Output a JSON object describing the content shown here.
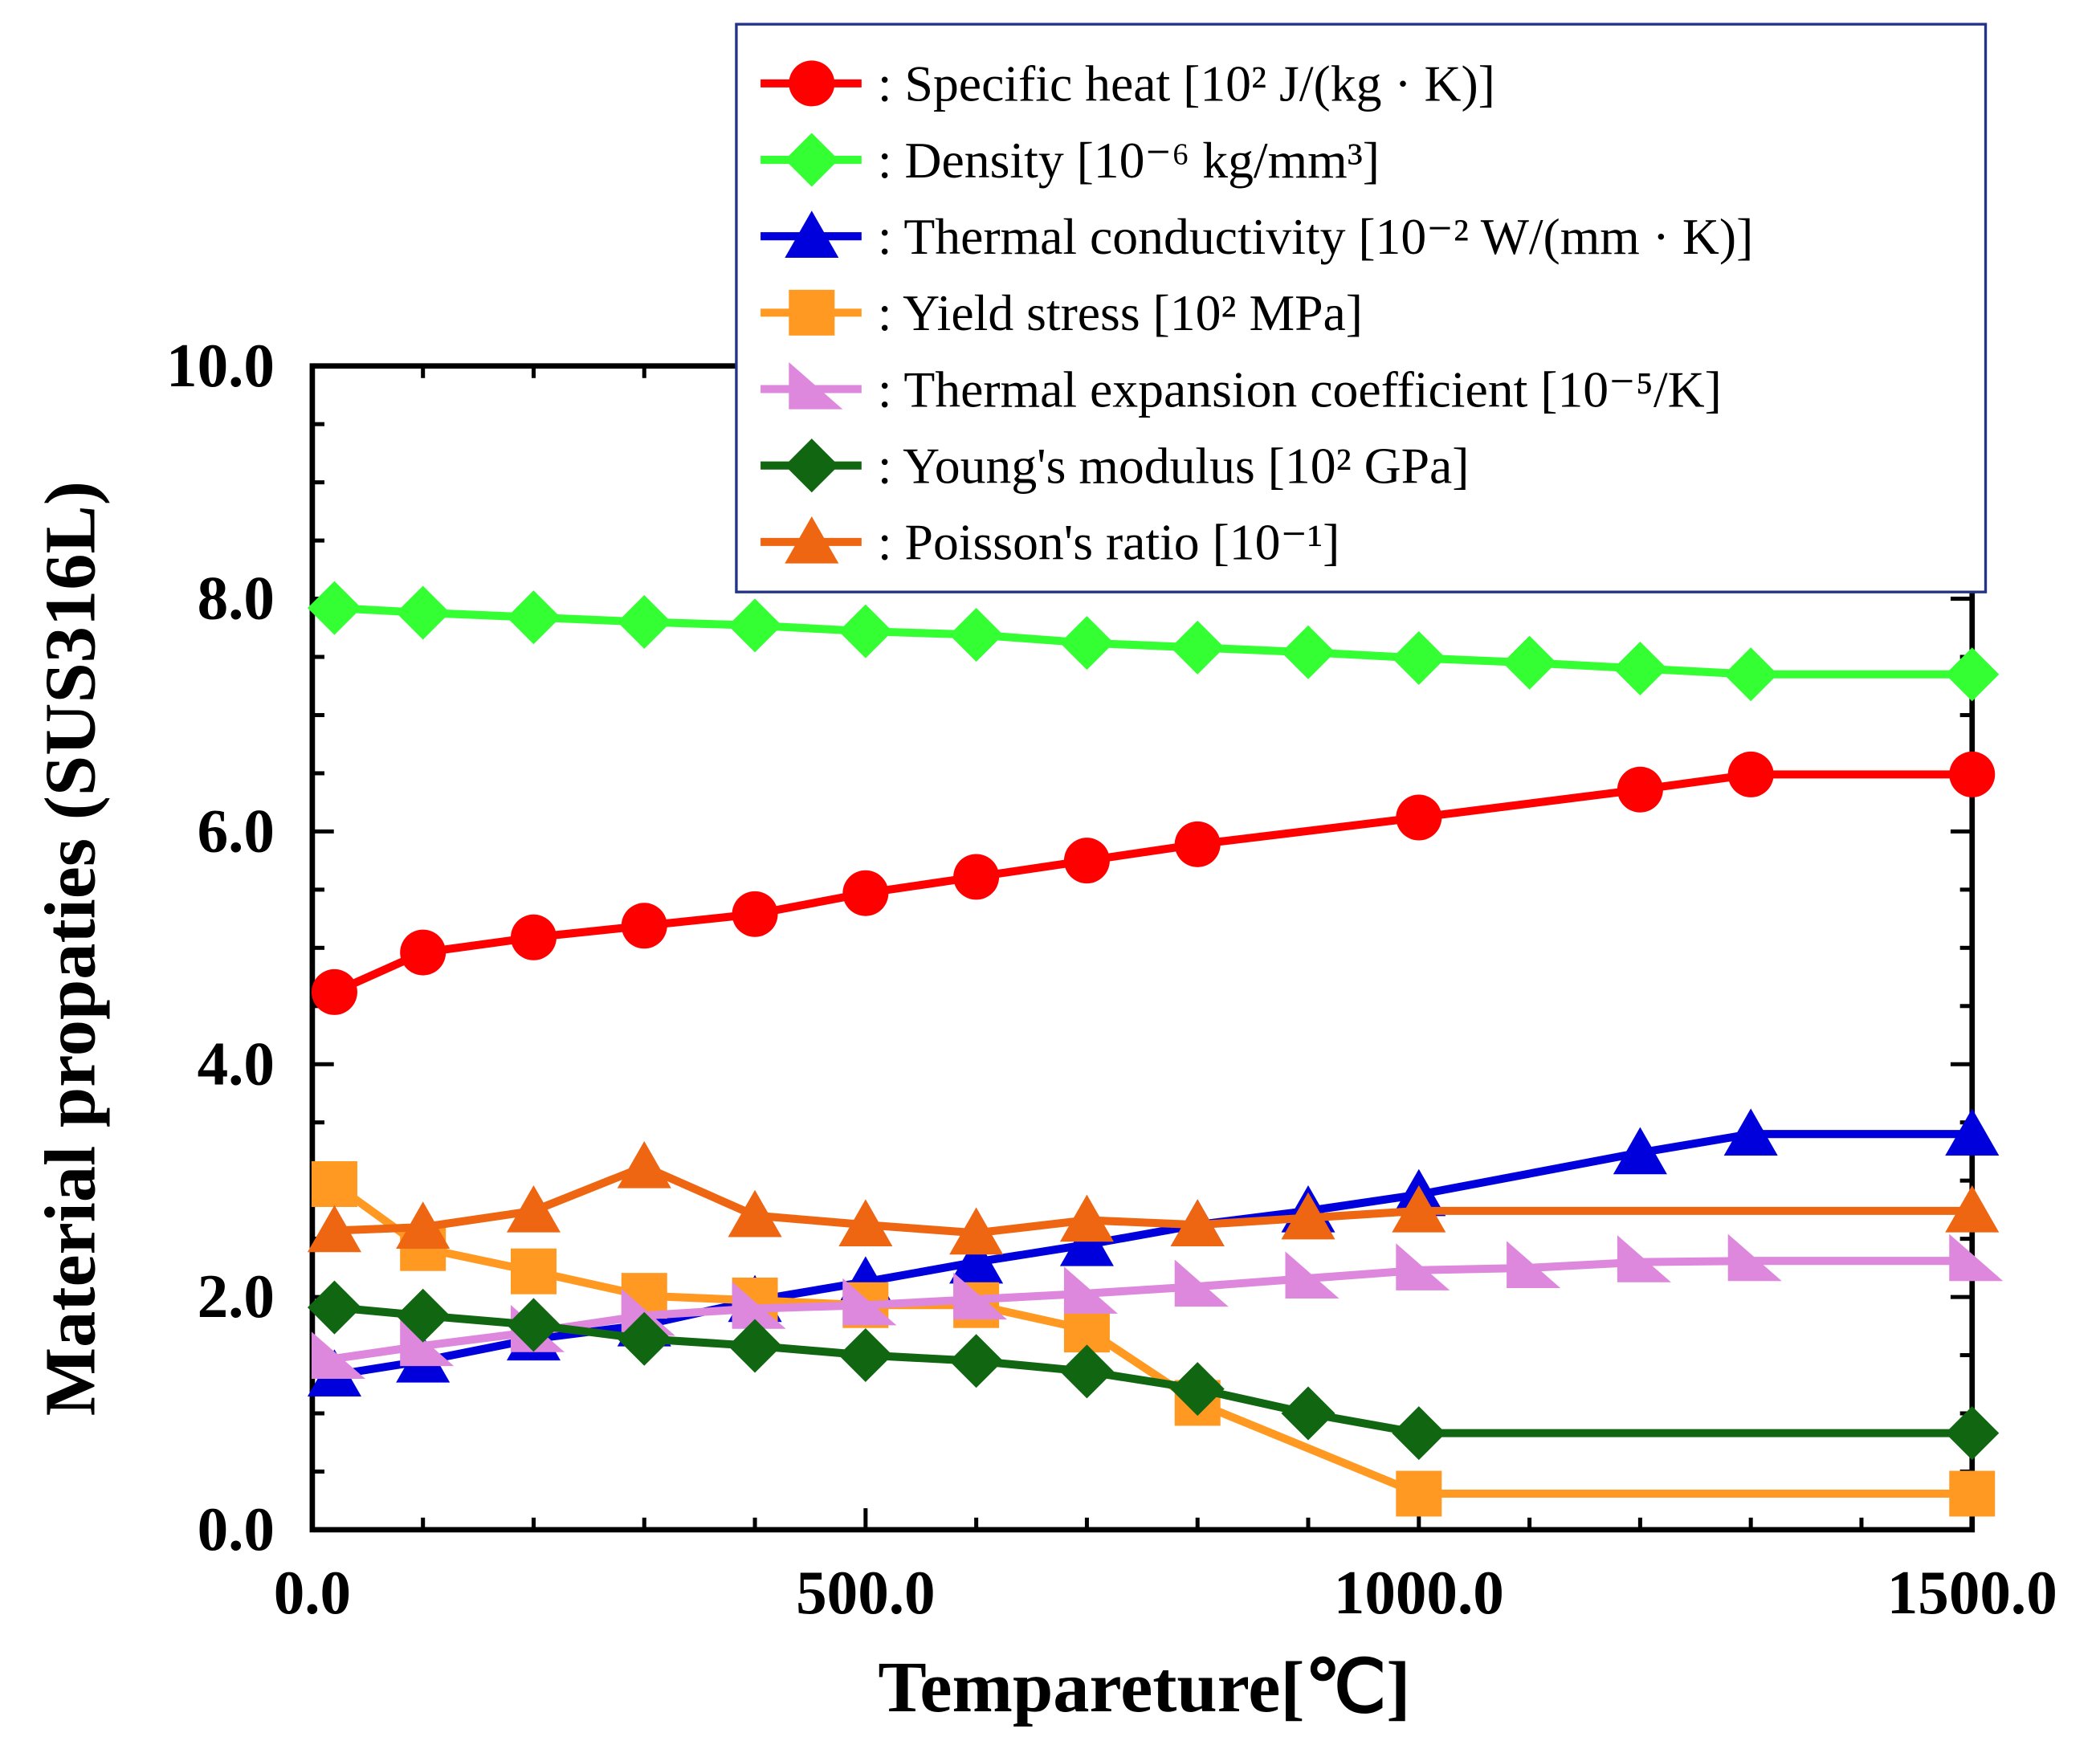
{
  "chart_data": {
    "type": "line",
    "title": "",
    "xlabel": "Tempareture[℃]",
    "ylabel": "Material propaties (SUS316L)",
    "xlim": [
      0,
      1500
    ],
    "ylim": [
      0,
      10
    ],
    "xticks": [
      "0.0",
      "500.0",
      "1000.0",
      "1500.0"
    ],
    "yticks": [
      "0.0",
      "2.0",
      "4.0",
      "6.0",
      "8.0",
      "10.0"
    ],
    "xtick_values": [
      0,
      500,
      1000,
      1500
    ],
    "ytick_values": [
      0,
      2,
      4,
      6,
      8,
      10
    ],
    "grid": false,
    "legend_position": "top-right",
    "series": [
      {
        "name": ": Specific heat [10² J/(kg · K)]",
        "color": "#ff0000",
        "marker": "circle",
        "x": [
          20,
          100,
          200,
          300,
          400,
          500,
          600,
          700,
          800,
          1000,
          1200,
          1300,
          1500
        ],
        "y": [
          4.62,
          4.96,
          5.09,
          5.19,
          5.29,
          5.47,
          5.61,
          5.75,
          5.89,
          6.12,
          6.36,
          6.49,
          6.49
        ]
      },
      {
        "name": ": Density [10⁻⁶ kg/mm³]",
        "color": "#33ff33",
        "marker": "diamond",
        "x": [
          20,
          100,
          200,
          300,
          400,
          500,
          600,
          700,
          800,
          900,
          1000,
          1100,
          1200,
          1300,
          1500
        ],
        "y": [
          7.92,
          7.88,
          7.84,
          7.8,
          7.77,
          7.72,
          7.69,
          7.62,
          7.58,
          7.54,
          7.49,
          7.45,
          7.4,
          7.35,
          7.35
        ]
      },
      {
        "name": ": Thermal conductivity [10⁻² W/(mm · K)]",
        "color": "#0000dd",
        "marker": "triangle-up",
        "x": [
          20,
          100,
          200,
          300,
          400,
          500,
          600,
          700,
          800,
          900,
          1000,
          1200,
          1300,
          1500
        ],
        "y": [
          1.33,
          1.45,
          1.64,
          1.76,
          1.97,
          2.13,
          2.3,
          2.45,
          2.62,
          2.74,
          2.88,
          3.24,
          3.4,
          3.4
        ]
      },
      {
        "name": ": Yield stress [10² MPa]",
        "color": "#ff9922",
        "marker": "square",
        "x": [
          20,
          100,
          200,
          300,
          400,
          500,
          600,
          700,
          800,
          1000,
          1500
        ],
        "y": [
          2.97,
          2.42,
          2.22,
          2.01,
          1.97,
          1.93,
          1.93,
          1.72,
          1.09,
          0.31,
          0.31
        ]
      },
      {
        "name": ": Thermal expansion coefficient [10⁻⁵/K]",
        "color": "#dd88dd",
        "marker": "triangle-right",
        "x": [
          20,
          100,
          200,
          300,
          400,
          500,
          600,
          700,
          800,
          900,
          1000,
          1100,
          1200,
          1300,
          1500
        ],
        "y": [
          1.47,
          1.58,
          1.7,
          1.84,
          1.9,
          1.93,
          1.98,
          2.03,
          2.09,
          2.16,
          2.23,
          2.25,
          2.3,
          2.31,
          2.31
        ]
      },
      {
        "name": ": Young's modulus [10² GPa]",
        "color": "#116611",
        "marker": "diamond",
        "x": [
          20,
          100,
          200,
          300,
          400,
          500,
          600,
          700,
          800,
          900,
          1000,
          1500
        ],
        "y": [
          1.91,
          1.84,
          1.76,
          1.64,
          1.58,
          1.5,
          1.45,
          1.36,
          1.21,
          1.0,
          0.83,
          0.83
        ]
      },
      {
        "name": ": Poisson's ratio [10⁻¹]",
        "color": "#ee6611",
        "marker": "triangle-up",
        "x": [
          20,
          100,
          200,
          300,
          400,
          500,
          600,
          700,
          800,
          900,
          1000,
          1500
        ],
        "y": [
          2.57,
          2.6,
          2.74,
          3.12,
          2.7,
          2.62,
          2.55,
          2.66,
          2.62,
          2.68,
          2.74,
          2.74
        ]
      }
    ]
  }
}
